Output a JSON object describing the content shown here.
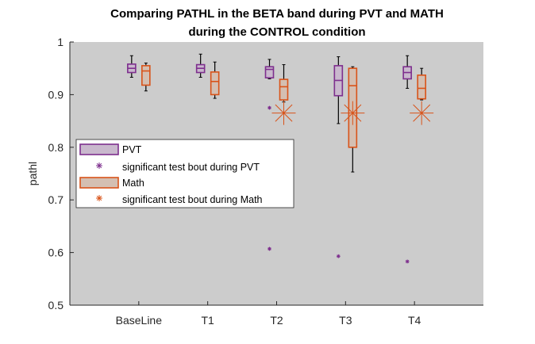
{
  "chart_data": {
    "type": "box",
    "title_lines": [
      "Comparing PATHL in the BETA band during PVT and MATH",
      "during the CONTROL condition"
    ],
    "xlabel": "",
    "ylabel": "pathl",
    "categories": [
      "BaseLine",
      "T1",
      "T2",
      "T3",
      "T4"
    ],
    "ylim": [
      0.5,
      1.0
    ],
    "yticks": [
      0.5,
      0.6,
      0.7,
      0.8,
      0.9,
      1.0
    ],
    "ytick_labels": [
      "0.5",
      "0.6",
      "0.7",
      "0.8",
      "0.9",
      "1"
    ],
    "background": "#cccccc",
    "series": [
      {
        "name": "PVT",
        "color": "#7e2f8e",
        "fill": "#c9b8cd",
        "boxes": [
          {
            "whisker_low": 0.933,
            "q1": 0.942,
            "median": 0.95,
            "q3": 0.958,
            "whisker_high": 0.974
          },
          {
            "whisker_low": 0.933,
            "q1": 0.942,
            "median": 0.95,
            "q3": 0.957,
            "whisker_high": 0.977
          },
          {
            "whisker_low": 0.93,
            "q1": 0.932,
            "median": 0.948,
            "q3": 0.953,
            "whisker_high": 0.967
          },
          {
            "whisker_low": 0.845,
            "q1": 0.898,
            "median": 0.927,
            "q3": 0.955,
            "whisker_high": 0.972
          },
          {
            "whisker_low": 0.912,
            "q1": 0.93,
            "median": 0.942,
            "q3": 0.953,
            "whisker_high": 0.974
          }
        ],
        "outliers": [
          {
            "category": "BaseLine",
            "values": []
          },
          {
            "category": "T1",
            "values": []
          },
          {
            "category": "T2",
            "values": [
              0.875,
              0.607
            ]
          },
          {
            "category": "T3",
            "values": [
              0.593
            ]
          },
          {
            "category": "T4",
            "values": [
              0.583
            ]
          }
        ]
      },
      {
        "name": "Math",
        "color": "#d95319",
        "fill": "#d4bfb2",
        "boxes": [
          {
            "whisker_low": 0.907,
            "q1": 0.918,
            "median": 0.945,
            "q3": 0.955,
            "whisker_high": 0.96
          },
          {
            "whisker_low": 0.893,
            "q1": 0.9,
            "median": 0.925,
            "q3": 0.943,
            "whisker_high": 0.962
          },
          {
            "whisker_low": 0.886,
            "q1": 0.89,
            "median": 0.915,
            "q3": 0.929,
            "whisker_high": 0.957
          },
          {
            "whisker_low": 0.753,
            "q1": 0.8,
            "median": 0.917,
            "q3": 0.95,
            "whisker_high": 0.953
          },
          {
            "whisker_low": 0.89,
            "q1": 0.892,
            "median": 0.912,
            "q3": 0.937,
            "whisker_high": 0.95
          }
        ],
        "significant_markers": [
          {
            "category": "T2",
            "value": 0.865
          },
          {
            "category": "T3",
            "value": 0.865
          },
          {
            "category": "T4",
            "value": 0.865
          }
        ]
      }
    ],
    "legend": {
      "placement": "middle-left",
      "entries": [
        {
          "label": "PVT",
          "kind": "box",
          "color": "#7e2f8e",
          "fill": "#c9b8cd"
        },
        {
          "label": "significant test bout during PVT",
          "kind": "star",
          "color": "#7e2f8e"
        },
        {
          "label": "Math",
          "kind": "box",
          "color": "#d95319",
          "fill": "#d4bfb2"
        },
        {
          "label": "significant test bout during Math",
          "kind": "star",
          "color": "#d95319"
        }
      ]
    },
    "grid": false
  }
}
